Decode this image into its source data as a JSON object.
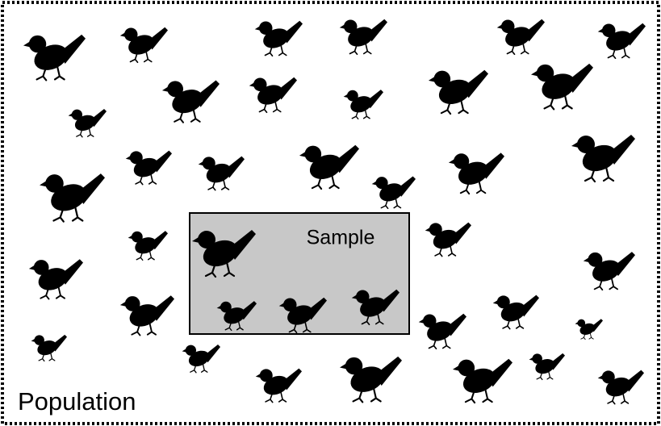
{
  "diagram": {
    "population_label": "Population",
    "sample_label": "Sample"
  }
}
